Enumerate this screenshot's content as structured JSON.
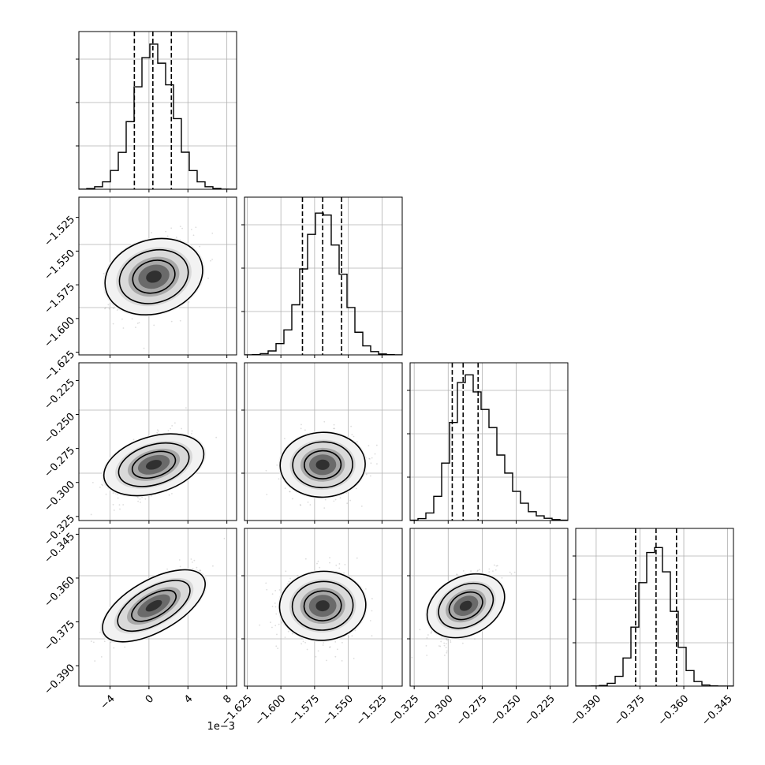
{
  "chart_data": {
    "type": "corner",
    "params": [
      {
        "lim": [
          -7.2,
          9.0
        ],
        "ticks": [
          -4,
          0,
          4,
          8
        ],
        "tick_labels": [
          "−4",
          "0",
          "4",
          "8"
        ],
        "offset_text": "1e−3",
        "mean": 0.5,
        "sd": 2.0,
        "quantiles": [
          -1.5,
          0.4,
          2.3
        ]
      },
      {
        "lim": [
          -1.627,
          -1.51
        ],
        "ticks": [
          -1.625,
          -1.6,
          -1.575,
          -1.55,
          -1.525
        ],
        "tick_labels": [
          "−1.625",
          "−1.600",
          "−1.575",
          "−1.550",
          "−1.525"
        ],
        "offset_text": "",
        "mean": -1.569,
        "sd": 0.014,
        "quantiles": [
          -1.584,
          -1.569,
          -1.555
        ]
      },
      {
        "lim": [
          -0.328,
          -0.212
        ],
        "ticks": [
          -0.325,
          -0.3,
          -0.275,
          -0.25,
          -0.225
        ],
        "tick_labels": [
          "−0.325",
          "−0.300",
          "−0.275",
          "−0.250",
          "−0.225"
        ],
        "offset_text": "",
        "mean": -0.287,
        "sd": 0.011,
        "quantiles": [
          -0.297,
          -0.289,
          -0.278
        ]
      },
      {
        "lim": [
          -0.397,
          -0.343
        ],
        "ticks": [
          -0.39,
          -0.375,
          -0.36,
          -0.345
        ],
        "tick_labels": [
          "−0.390",
          "−0.375",
          "−0.360",
          "−0.345"
        ],
        "offset_text": "",
        "mean": -0.3695,
        "sd": 0.0055,
        "quantiles": [
          -0.3765,
          -0.3695,
          -0.3625
        ]
      }
    ],
    "hist_bins": 20,
    "levels": [
      0.39,
      0.86,
      0.99
    ],
    "grid": true,
    "colors": {
      "contour": "#000000",
      "points": "#9e9e9e",
      "quantile": "#000000",
      "axes": "#000000",
      "grid": "#b0b0b0"
    }
  }
}
